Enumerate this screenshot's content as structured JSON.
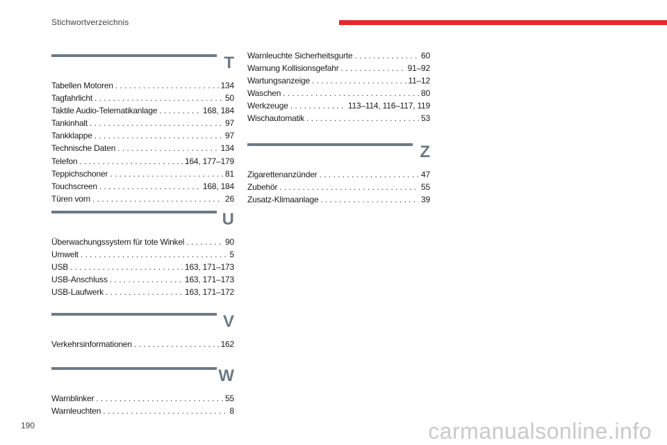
{
  "header": {
    "title": "Stichwortverzeichnis",
    "accent_color": "#e8262a"
  },
  "footer": {
    "page_number": "190"
  },
  "watermark": {
    "text": "carmanualsonline.info"
  },
  "sections": {
    "T": {
      "letter": "T",
      "entries": [
        {
          "name": "Tabellen Motoren",
          "pages": "134"
        },
        {
          "name": "Tagfahrlicht",
          "pages": "50"
        },
        {
          "name": "Taktile Audio-Telematikanlage",
          "pages": "168, 184"
        },
        {
          "name": "Tankinhalt",
          "pages": "97"
        },
        {
          "name": "Tankklappe",
          "pages": "97"
        },
        {
          "name": "Technische Daten",
          "pages": "134"
        },
        {
          "name": "Telefon",
          "pages": "164, 177–179"
        },
        {
          "name": "Teppichschoner",
          "pages": "81"
        },
        {
          "name": "Touchscreen",
          "pages": "168, 184"
        },
        {
          "name": "Türen vorn",
          "pages": "26"
        }
      ]
    },
    "U": {
      "letter": "U",
      "entries": [
        {
          "name": "Überwachungssystem für tote Winkel",
          "pages": "90"
        },
        {
          "name": "Umwelt",
          "pages": "5"
        },
        {
          "name": "USB",
          "pages": "163, 171–173"
        },
        {
          "name": "USB-Anschluss",
          "pages": "163, 171–173"
        },
        {
          "name": "USB-Laufwerk",
          "pages": "163, 171–172"
        }
      ]
    },
    "V": {
      "letter": "V",
      "entries": [
        {
          "name": "Verkehrsinformationen",
          "pages": "162"
        }
      ]
    },
    "W": {
      "letter": "W",
      "entries": [
        {
          "name": "Warnblinker",
          "pages": "55"
        },
        {
          "name": "Warnleuchten",
          "pages": "8"
        }
      ]
    },
    "W_cont": {
      "entries": [
        {
          "name": "Warnleuchte Sicherheitsgurte",
          "pages": "60"
        },
        {
          "name": "Warnung Kollisionsgefahr",
          "pages": "91–92"
        },
        {
          "name": "Wartungsanzeige",
          "pages": "11–12"
        },
        {
          "name": "Waschen",
          "pages": "80"
        },
        {
          "name": "Werkzeuge",
          "pages": "113–114, 116–117, 119"
        },
        {
          "name": "Wischautomatik",
          "pages": "53"
        }
      ]
    },
    "Z": {
      "letter": "Z",
      "entries": [
        {
          "name": "Zigarettenanzünder",
          "pages": "47"
        },
        {
          "name": "Zubehör",
          "pages": "55"
        },
        {
          "name": "Zusatz-Klimaanlage",
          "pages": "39"
        }
      ]
    }
  }
}
